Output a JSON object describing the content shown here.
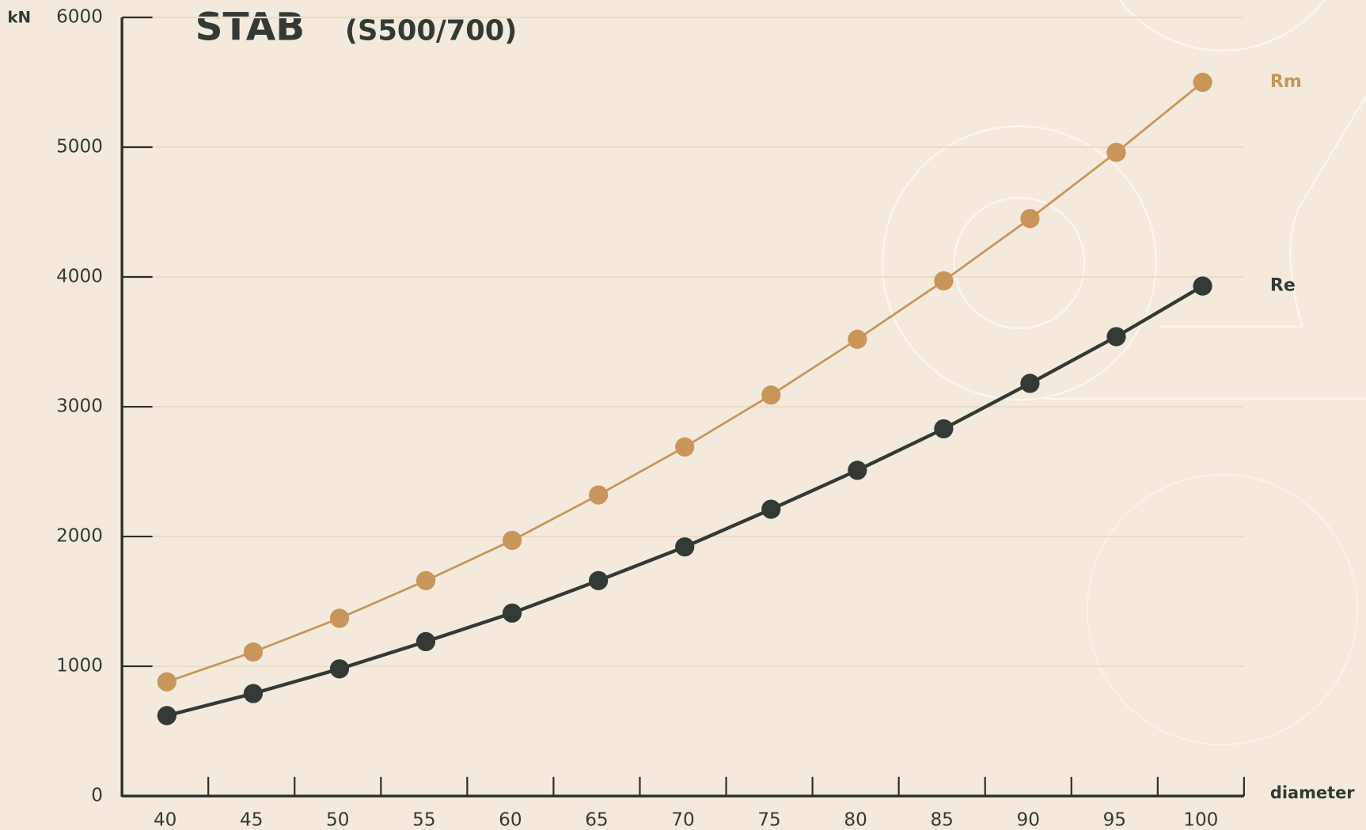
{
  "chart_data": {
    "type": "line",
    "title": "STAB",
    "subtitle": "(S500/700)",
    "y_label": "kN",
    "x_label": "diameter",
    "categories": [
      "40",
      "45",
      "50",
      "55",
      "60",
      "65",
      "70",
      "75",
      "80",
      "85",
      "90",
      "95",
      "100"
    ],
    "series": [
      {
        "name": "Rm",
        "color": "#c8955a",
        "values": [
          880,
          1110,
          1370,
          1660,
          1970,
          2320,
          2690,
          3090,
          3520,
          3970,
          4450,
          4960,
          5500
        ]
      },
      {
        "name": "Re",
        "color": "#333a35",
        "values": [
          620,
          790,
          980,
          1190,
          1410,
          1660,
          1920,
          2210,
          2510,
          2830,
          3180,
          3540,
          3930
        ]
      }
    ],
    "ylim": [
      0,
      6000
    ],
    "yticks": [
      0,
      1000,
      2000,
      3000,
      4000,
      5000,
      6000
    ],
    "grid": true
  }
}
